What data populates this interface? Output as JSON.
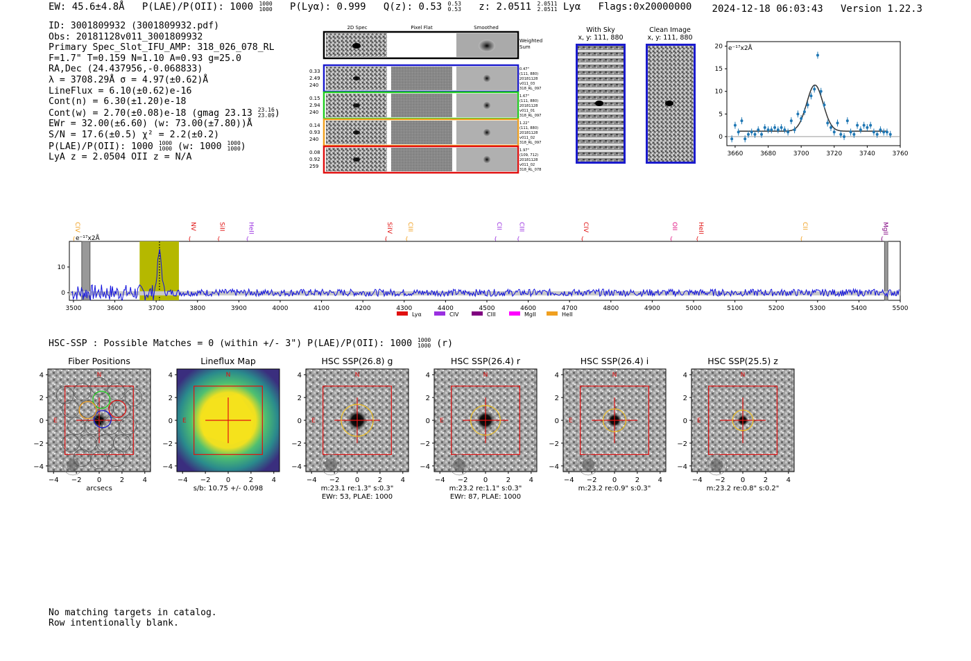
{
  "header": {
    "ew": "EW: 45.6±4.8Å",
    "plae": "P(LAE)/P(OII): 1000",
    "plae_hi": "1000",
    "plae_lo": "1000",
    "ply": "P(Lyα): 0.999",
    "q": "Q(z): 0.53",
    "q_hi": "0.53",
    "q_lo": "0.53",
    "z": "z: 2.0511",
    "z_hi": "2.0511",
    "z_lo": "2.0511",
    "line": "Lyα",
    "flags": "Flags:0x20000000",
    "timestamp": "2024-12-18 06:03:43",
    "version": "Version 1.22.3"
  },
  "info": {
    "id": "ID: 3001809932 (3001809932.pdf)",
    "obs": "Obs: 20181128v011_3001809932",
    "primary": "Primary Spec_Slot_IFU_AMP: 318_026_078_RL",
    "params": "F=1.7\"  T=0.159  N=1.10  A=0.93  g=25.0",
    "radec": "RA,Dec (24.437956,-0.068833)",
    "lambda": "λ = 3708.29Å  σ = 4.97(±0.62)Å",
    "lineflux": "LineFlux = 6.10(±0.62)e-16",
    "contn": "Cont(n) = 6.30(±1.20)e-18",
    "contw": "Cont(w) = 2.70(±0.08)e-18 (gmag 23.13",
    "contw_hi": "23.16",
    "contw_lo": "23.09",
    "contw_end": ")",
    "ewr": "EWr = 32.00(±6.60) (w: 73.00(±7.80))Å",
    "sn": "S/N = 17.6(±0.5)  χ² = 2.2(±0.2)",
    "plae": "P(LAE)/P(OII): 1000",
    "plae_hi": "1000",
    "plae_lo": "1000",
    "plae_w": "(w: 1000",
    "plae_w_hi": "1000",
    "plae_w_lo": "1000",
    "plae_w_end": ")",
    "lyaz": "LyA z = 2.0504   OII z = N/A"
  },
  "cutouts": {
    "col_2d": "2D Spec",
    "col_flat": "Pixel Flat",
    "col_smooth": "Smoothed",
    "weighted": "Weighted\nSum",
    "rows": [
      {
        "w1": "0.33",
        "w2": "2.49",
        "w3": "240",
        "d1": "0.47\"",
        "d2": "(111, 880)",
        "d3": "20181128",
        "d4": "v011_03",
        "d5": "318_RL_097",
        "color": "#1a1acc"
      },
      {
        "w1": "0.15",
        "w2": "2.94",
        "w3": "240",
        "d1": "1.67\"",
        "d2": "(111, 880)",
        "d3": "20181128",
        "d4": "v011_01",
        "d5": "318_RL_097",
        "color": "#22cc22"
      },
      {
        "w1": "0.14",
        "w2": "0.93",
        "w3": "240",
        "d1": "1.22\"",
        "d2": "(111, 880)",
        "d3": "20181128",
        "d4": "v011_02",
        "d5": "318_RL_097",
        "color": "#f0a020"
      },
      {
        "w1": "0.08",
        "w2": "0.92",
        "w3": "259",
        "d1": "1.97\"",
        "d2": "(109, 712)",
        "d3": "20181128",
        "d4": "v011_02",
        "d5": "318_RL_078",
        "color": "#e01010"
      }
    ],
    "with_sky": "With Sky",
    "with_sky_xy": "x, y: 111, 880",
    "clean": "Clean Image",
    "clean_xy": "x, y: 111, 880"
  },
  "zoom_chart": {
    "ylabel": "e⁻¹⁷x2Å",
    "yticks": [
      "0",
      "5",
      "10",
      "15",
      "20"
    ],
    "xticks": [
      "3660",
      "3680",
      "3700",
      "3720",
      "3740",
      "3760"
    ]
  },
  "chart_data": [
    {
      "type": "scatter",
      "title": "",
      "ylabel": "e-17x2Å",
      "xlim": [
        3655,
        3760
      ],
      "ylim": [
        -2,
        21
      ],
      "x": [
        3658,
        3660,
        3662,
        3664,
        3666,
        3668,
        3670,
        3672,
        3674,
        3676,
        3678,
        3680,
        3682,
        3684,
        3686,
        3688,
        3690,
        3692,
        3694,
        3696,
        3698,
        3700,
        3702,
        3704,
        3706,
        3708,
        3710,
        3712,
        3714,
        3716,
        3718,
        3720,
        3722,
        3724,
        3726,
        3728,
        3730,
        3732,
        3734,
        3736,
        3738,
        3740,
        3742,
        3744,
        3746,
        3748,
        3750,
        3752,
        3754
      ],
      "y": [
        -0.5,
        2.5,
        1.0,
        3.5,
        -0.5,
        0.5,
        1.0,
        0.5,
        1.5,
        0.5,
        2.0,
        1.5,
        1.5,
        2.0,
        1.5,
        2.0,
        1.5,
        1.0,
        3.5,
        1.5,
        5.0,
        4.0,
        5.5,
        7.0,
        9.0,
        10.5,
        18.0,
        10.0,
        7.0,
        3.0,
        2.0,
        1.0,
        3.0,
        0.5,
        0.0,
        3.5,
        1.0,
        0.5,
        2.5,
        1.5,
        2.5,
        2.0,
        2.5,
        1.0,
        0.5,
        1.5,
        1.0,
        1.0,
        0.5
      ],
      "fit": {
        "amp": 10.2,
        "center": 3708.3,
        "sigma": 4.97,
        "cont": 1.2
      },
      "xticks": [
        3660,
        3680,
        3700,
        3720,
        3740,
        3760
      ],
      "yticks": [
        0,
        5,
        10,
        15,
        20
      ]
    },
    {
      "type": "line",
      "title": "",
      "ylabel": "e-17x2Å",
      "xlim": [
        3490,
        5500
      ],
      "ylim": [
        -3,
        20
      ],
      "xticks": [
        3500,
        3600,
        3700,
        3800,
        3900,
        4000,
        4100,
        4200,
        4300,
        4400,
        4500,
        4600,
        4700,
        4800,
        4900,
        5000,
        5100,
        5200,
        5300,
        5400,
        5500
      ],
      "yticks": [
        0,
        10
      ],
      "highlight": [
        3660,
        3755
      ],
      "line_markers": [
        {
          "label": "CIV",
          "x": 3500,
          "color": "#f0a020"
        },
        {
          "label": "NV",
          "x": 3780,
          "color": "#e01010"
        },
        {
          "label": "SiII",
          "x": 3850,
          "color": "#e01010"
        },
        {
          "label": "HeII",
          "x": 3920,
          "color": "#9a30e0"
        },
        {
          "label": "SiIV",
          "x": 4255,
          "color": "#e01010"
        },
        {
          "label": "CIII",
          "x": 4305,
          "color": "#f0a020"
        },
        {
          "label": "CII",
          "x": 4520,
          "color": "#9a30e0"
        },
        {
          "label": "CIII",
          "x": 4575,
          "color": "#9a30e0"
        },
        {
          "label": "CIV",
          "x": 4730,
          "color": "#e01010"
        },
        {
          "label": "OII",
          "x": 4945,
          "color": "#e01080"
        },
        {
          "label": "HeII",
          "x": 5008,
          "color": "#e01010"
        },
        {
          "label": "CII",
          "x": 5260,
          "color": "#f0a020"
        },
        {
          "label": "MgII",
          "x": 5455,
          "color": "#800080"
        }
      ],
      "legend": [
        {
          "label": "Lyα",
          "color": "#e01010"
        },
        {
          "label": "CIV",
          "color": "#9a30e0"
        },
        {
          "label": "CIII",
          "color": "#800080"
        },
        {
          "label": "MgII",
          "color": "#ff00ff"
        },
        {
          "label": "HeII",
          "color": "#f0a020"
        }
      ]
    }
  ],
  "full_chart": {
    "ylabel": "e⁻¹⁷x2Å",
    "yticks": [
      "0",
      "10"
    ],
    "xticks": [
      "3500",
      "3600",
      "3700",
      "3800",
      "3900",
      "4000",
      "4100",
      "4200",
      "4300",
      "4400",
      "4500",
      "4600",
      "4700",
      "4800",
      "4900",
      "5000",
      "5100",
      "5200",
      "5300",
      "5400",
      "5500"
    ]
  },
  "hsc": {
    "summary": "HSC-SSP : Possible Matches = 0 (within +/- 3\")  P(LAE)/P(OII): 1000",
    "summary_hi": "1000",
    "summary_lo": "1000",
    "summary_end": "(r)",
    "panels": [
      {
        "title": "Fiber Positions",
        "cap1": "arcsecs",
        "cap2": ""
      },
      {
        "title": "Lineflux Map",
        "cap1": "s/b: 10.75 +/- 0.098",
        "cap2": ""
      },
      {
        "title": "HSC SSP(26.8) g",
        "cap1": "m:23.1  re:1.3\"  s:0.3\"",
        "cap2": "EWr: 53, PLAE: 1000"
      },
      {
        "title": "HSC SSP(26.4) r",
        "cap1": "m:23.2  re:1.1\"  s:0.3\"",
        "cap2": "EWr: 87, PLAE: 1000"
      },
      {
        "title": "HSC SSP(26.4) i",
        "cap1": "m:23.2  re:0.9\"  s:0.3\"",
        "cap2": ""
      },
      {
        "title": "HSC SSP(25.5) z",
        "cap1": "m:23.2  re:0.8\"  s:0.2\"",
        "cap2": ""
      }
    ],
    "yticks": [
      "4",
      "2",
      "0",
      "−2",
      "−4"
    ],
    "xticks": [
      "−4",
      "−2",
      "0",
      "2",
      "4"
    ],
    "north": "N",
    "east": "E"
  },
  "footer": {
    "line1": "No matching targets in catalog.",
    "line2": "Row intentionally blank."
  }
}
